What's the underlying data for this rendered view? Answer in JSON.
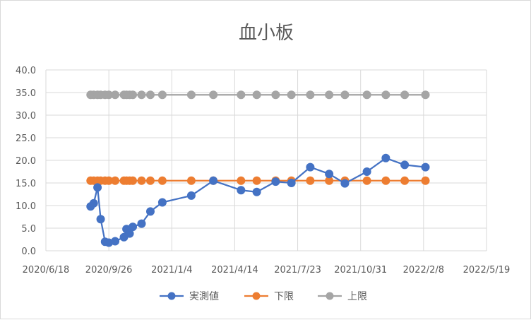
{
  "chart_data": {
    "type": "line",
    "title": "血小板",
    "xlabel": "",
    "ylabel": "",
    "ylim": [
      0,
      40
    ],
    "y_ticks": [
      0,
      5,
      10,
      15,
      20,
      25,
      30,
      35,
      40
    ],
    "y_tick_labels": [
      "0.0",
      "5.0",
      "10.0",
      "15.0",
      "20.0",
      "25.0",
      "30.0",
      "35.0",
      "40.0"
    ],
    "xlim": [
      "2020/6/18",
      "2022/5/19"
    ],
    "x_ticks": [
      "2020/6/18",
      "2020/9/26",
      "2021/1/4",
      "2021/4/14",
      "2021/7/23",
      "2021/10/31",
      "2022/2/8",
      "2022/5/19"
    ],
    "grid": true,
    "legend_position": "bottom",
    "series": [
      {
        "name": "実測値",
        "color": "#4472C4",
        "points": [
          [
            "2020/8/28",
            9.8
          ],
          [
            "2020/9/2",
            10.5
          ],
          [
            "2020/9/8",
            14.0
          ],
          [
            "2020/9/13",
            7.0
          ],
          [
            "2020/9/20",
            2.0
          ],
          [
            "2020/9/26",
            1.8
          ],
          [
            "2020/10/6",
            2.1
          ],
          [
            "2020/10/20",
            3.0
          ],
          [
            "2020/10/24",
            4.8
          ],
          [
            "2020/10/29",
            3.8
          ],
          [
            "2020/11/3",
            5.3
          ],
          [
            "2020/11/17",
            6.0
          ],
          [
            "2020/12/1",
            8.7
          ],
          [
            "2020/12/20",
            10.7
          ],
          [
            "2021/2/4",
            12.2
          ],
          [
            "2021/3/11",
            15.5
          ],
          [
            "2021/4/24",
            13.4
          ],
          [
            "2021/5/19",
            13.0
          ],
          [
            "2021/6/18",
            15.3
          ],
          [
            "2021/7/13",
            15.0
          ],
          [
            "2021/8/12",
            18.5
          ],
          [
            "2021/9/11",
            17.0
          ],
          [
            "2021/10/6",
            14.9
          ],
          [
            "2021/11/10",
            17.5
          ],
          [
            "2021/12/10",
            20.5
          ],
          [
            "2022/1/9",
            19.0
          ],
          [
            "2022/2/11",
            18.5
          ]
        ]
      },
      {
        "name": "下限",
        "color": "#ED7D31",
        "points": [
          [
            "2020/8/28",
            15.5
          ],
          [
            "2020/9/2",
            15.5
          ],
          [
            "2020/9/8",
            15.5
          ],
          [
            "2020/9/13",
            15.5
          ],
          [
            "2020/9/20",
            15.5
          ],
          [
            "2020/9/26",
            15.5
          ],
          [
            "2020/10/6",
            15.5
          ],
          [
            "2020/10/20",
            15.5
          ],
          [
            "2020/10/24",
            15.5
          ],
          [
            "2020/10/29",
            15.5
          ],
          [
            "2020/11/3",
            15.5
          ],
          [
            "2020/11/17",
            15.5
          ],
          [
            "2020/12/1",
            15.5
          ],
          [
            "2020/12/20",
            15.5
          ],
          [
            "2021/2/4",
            15.5
          ],
          [
            "2021/3/11",
            15.5
          ],
          [
            "2021/4/24",
            15.5
          ],
          [
            "2021/5/19",
            15.5
          ],
          [
            "2021/6/18",
            15.5
          ],
          [
            "2021/7/13",
            15.5
          ],
          [
            "2021/8/12",
            15.5
          ],
          [
            "2021/9/11",
            15.5
          ],
          [
            "2021/10/6",
            15.5
          ],
          [
            "2021/11/10",
            15.5
          ],
          [
            "2021/12/10",
            15.5
          ],
          [
            "2022/1/9",
            15.5
          ],
          [
            "2022/2/11",
            15.5
          ]
        ]
      },
      {
        "name": "上限",
        "color": "#A5A5A5",
        "points": [
          [
            "2020/8/28",
            34.5
          ],
          [
            "2020/9/2",
            34.5
          ],
          [
            "2020/9/8",
            34.5
          ],
          [
            "2020/9/13",
            34.5
          ],
          [
            "2020/9/20",
            34.5
          ],
          [
            "2020/9/26",
            34.5
          ],
          [
            "2020/10/6",
            34.5
          ],
          [
            "2020/10/20",
            34.5
          ],
          [
            "2020/10/24",
            34.5
          ],
          [
            "2020/10/29",
            34.5
          ],
          [
            "2020/11/3",
            34.5
          ],
          [
            "2020/11/17",
            34.5
          ],
          [
            "2020/12/1",
            34.5
          ],
          [
            "2020/12/20",
            34.5
          ],
          [
            "2021/2/4",
            34.5
          ],
          [
            "2021/3/11",
            34.5
          ],
          [
            "2021/4/24",
            34.5
          ],
          [
            "2021/5/19",
            34.5
          ],
          [
            "2021/6/18",
            34.5
          ],
          [
            "2021/7/13",
            34.5
          ],
          [
            "2021/8/12",
            34.5
          ],
          [
            "2021/9/11",
            34.5
          ],
          [
            "2021/10/6",
            34.5
          ],
          [
            "2021/11/10",
            34.5
          ],
          [
            "2021/12/10",
            34.5
          ],
          [
            "2022/1/9",
            34.5
          ],
          [
            "2022/2/11",
            34.5
          ]
        ]
      }
    ]
  }
}
